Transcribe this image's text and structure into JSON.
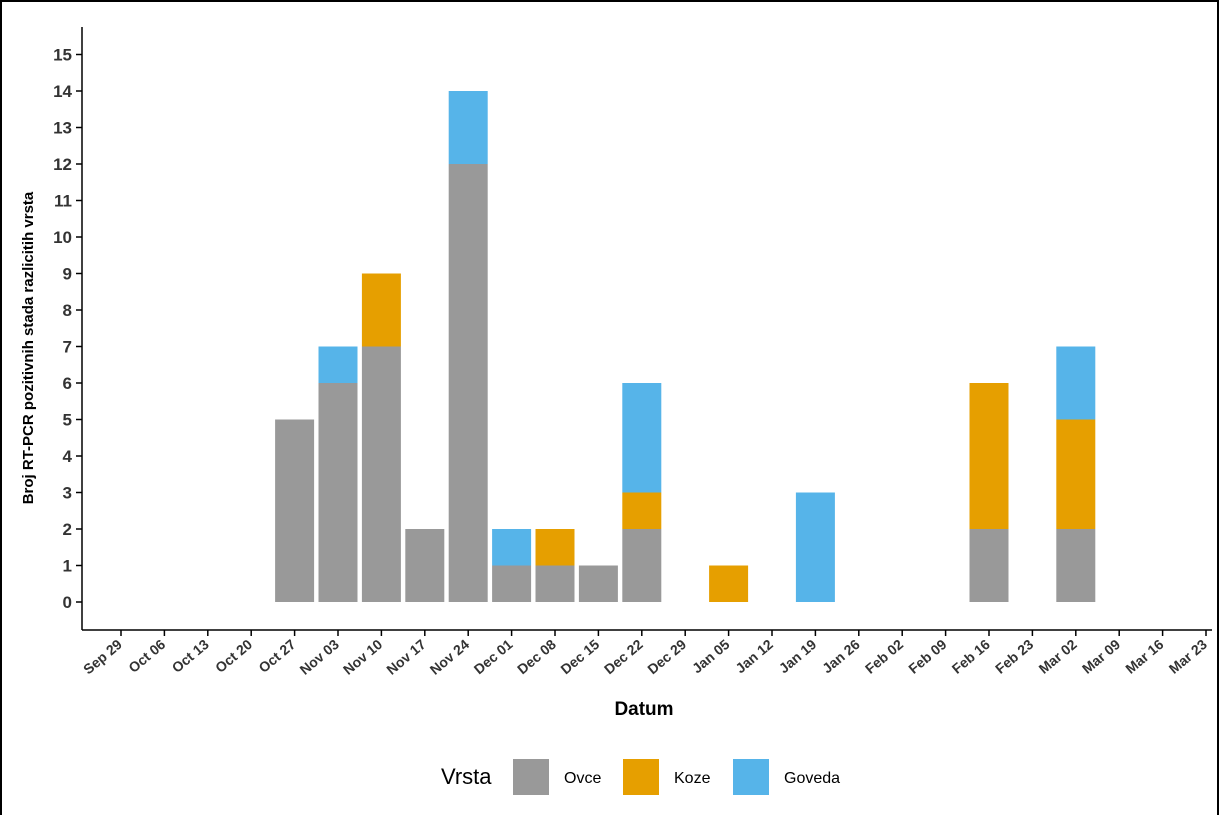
{
  "chart_data": {
    "type": "bar",
    "stacked": true,
    "title": "",
    "xlabel": "Datum",
    "ylabel": "Broj RT-PCR pozitivnih stada razlicitih vrsta",
    "ylim": [
      0,
      15.5
    ],
    "yticks": [
      0,
      1,
      2,
      3,
      4,
      5,
      6,
      7,
      8,
      9,
      10,
      11,
      12,
      13,
      14,
      15
    ],
    "xticks": [
      "Sep 29",
      "Oct 06",
      "Oct 13",
      "Oct 20",
      "Oct 27",
      "Nov 03",
      "Nov 10",
      "Nov 17",
      "Nov 24",
      "Dec 01",
      "Dec 08",
      "Dec 15",
      "Dec 22",
      "Dec 29",
      "Jan 05",
      "Jan 12",
      "Jan 19",
      "Jan 26",
      "Feb 02",
      "Feb 09",
      "Feb 16",
      "Feb 23",
      "Mar 02",
      "Mar 09",
      "Mar 16",
      "Mar 23"
    ],
    "categories": [
      "Oct 27",
      "Nov 03",
      "Nov 10",
      "Nov 17",
      "Nov 24",
      "Dec 01",
      "Dec 08",
      "Dec 15",
      "Dec 22",
      "Jan 05",
      "Jan 19",
      "Feb 16",
      "Mar 02"
    ],
    "series": [
      {
        "name": "Ovce",
        "color": "#999999",
        "values": [
          5,
          6,
          7,
          2,
          12,
          1,
          1,
          1,
          2,
          0,
          0,
          2,
          2
        ]
      },
      {
        "name": "Koze",
        "color": "#E69F00",
        "values": [
          0,
          0,
          2,
          0,
          0,
          0,
          1,
          0,
          1,
          1,
          0,
          4,
          3
        ]
      },
      {
        "name": "Goveda",
        "color": "#56B4E9",
        "values": [
          0,
          1,
          0,
          0,
          2,
          1,
          0,
          0,
          3,
          0,
          3,
          0,
          2
        ]
      }
    ],
    "legend": {
      "title": "Vrsta",
      "position": "bottom"
    },
    "grid": false
  }
}
